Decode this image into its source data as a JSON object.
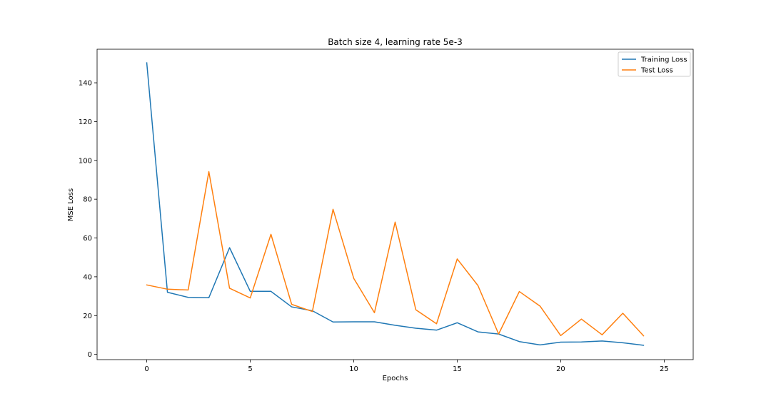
{
  "chart_data": {
    "type": "line",
    "title": "Batch size 4, learning rate 5e-3",
    "xlabel": "Epochs",
    "ylabel": "MSE Loss",
    "xlim": [
      -2.4,
      26.4
    ],
    "ylim": [
      -2.7,
      157.3
    ],
    "xticks": [
      0,
      5,
      10,
      15,
      20,
      25
    ],
    "yticks": [
      0,
      20,
      40,
      60,
      80,
      100,
      120,
      140
    ],
    "grid": false,
    "legend": "top-right",
    "x": [
      0,
      1,
      2,
      3,
      4,
      5,
      6,
      7,
      8,
      9,
      10,
      11,
      12,
      13,
      14,
      15,
      16,
      17,
      18,
      19,
      20,
      21,
      22,
      23,
      24
    ],
    "series": [
      {
        "name": "Training Loss",
        "color": "#1f77b4",
        "values": [
          150.3,
          32,
          29.4,
          29.2,
          55,
          32.5,
          32.5,
          24.5,
          22.5,
          16.7,
          16.8,
          16.8,
          15,
          13.5,
          12.5,
          16.3,
          11.6,
          10.5,
          6.6,
          4.9,
          6.3,
          6.4,
          6.9,
          6,
          4.7
        ]
      },
      {
        "name": "Test Loss",
        "color": "#ff7f0e",
        "values": [
          35.8,
          33.6,
          33.2,
          94.2,
          34.1,
          29.1,
          61.9,
          25.8,
          22.1,
          74.8,
          39.2,
          21.5,
          68.2,
          23,
          15.8,
          49.2,
          35.5,
          10.5,
          32.4,
          24.9,
          9.7,
          18.2,
          10.1,
          21.2,
          9.6
        ]
      }
    ]
  }
}
